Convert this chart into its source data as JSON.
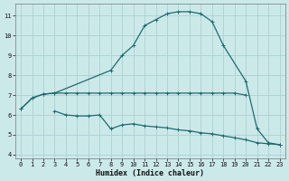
{
  "bg_color": "#cce9ea",
  "grid_color": "#aed4d5",
  "line_color": "#1e6b6b",
  "xlabel": "Humidex (Indice chaleur)",
  "xlim": [
    -0.5,
    23.5
  ],
  "ylim": [
    3.8,
    11.6
  ],
  "yticks": [
    4,
    5,
    6,
    7,
    8,
    9,
    10,
    11
  ],
  "xticks": [
    0,
    1,
    2,
    3,
    4,
    5,
    6,
    7,
    8,
    9,
    10,
    11,
    12,
    13,
    14,
    15,
    16,
    17,
    18,
    19,
    20,
    21,
    22,
    23
  ],
  "curve1_x": [
    0,
    1,
    2,
    3,
    8,
    9,
    10,
    11,
    12,
    13,
    14,
    15,
    16,
    17,
    18,
    20,
    21,
    22,
    23
  ],
  "curve1_y": [
    6.3,
    6.85,
    7.05,
    7.1,
    8.25,
    9.0,
    9.5,
    10.5,
    10.8,
    11.1,
    11.2,
    11.2,
    11.1,
    10.7,
    9.5,
    7.7,
    5.3,
    4.6,
    4.5
  ],
  "curve2_x": [
    0,
    1,
    2,
    3,
    4,
    5,
    6,
    7,
    8,
    9,
    10,
    11,
    12,
    13,
    14,
    15,
    16,
    17,
    18,
    19,
    20
  ],
  "curve2_y": [
    6.3,
    6.85,
    7.05,
    7.1,
    7.1,
    7.1,
    7.1,
    7.1,
    7.1,
    7.1,
    7.1,
    7.1,
    7.1,
    7.1,
    7.1,
    7.1,
    7.1,
    7.1,
    7.1,
    7.1,
    7.0
  ],
  "curve3_x": [
    3,
    4,
    5,
    6,
    7,
    8,
    9,
    10,
    11,
    12,
    13,
    14,
    15,
    16,
    17,
    18,
    19,
    20,
    21,
    22,
    23
  ],
  "curve3_y": [
    6.2,
    6.0,
    5.95,
    5.95,
    6.0,
    5.3,
    5.5,
    5.55,
    5.45,
    5.4,
    5.35,
    5.25,
    5.2,
    5.1,
    5.05,
    4.95,
    4.85,
    4.75,
    4.6,
    4.55,
    4.5
  ]
}
